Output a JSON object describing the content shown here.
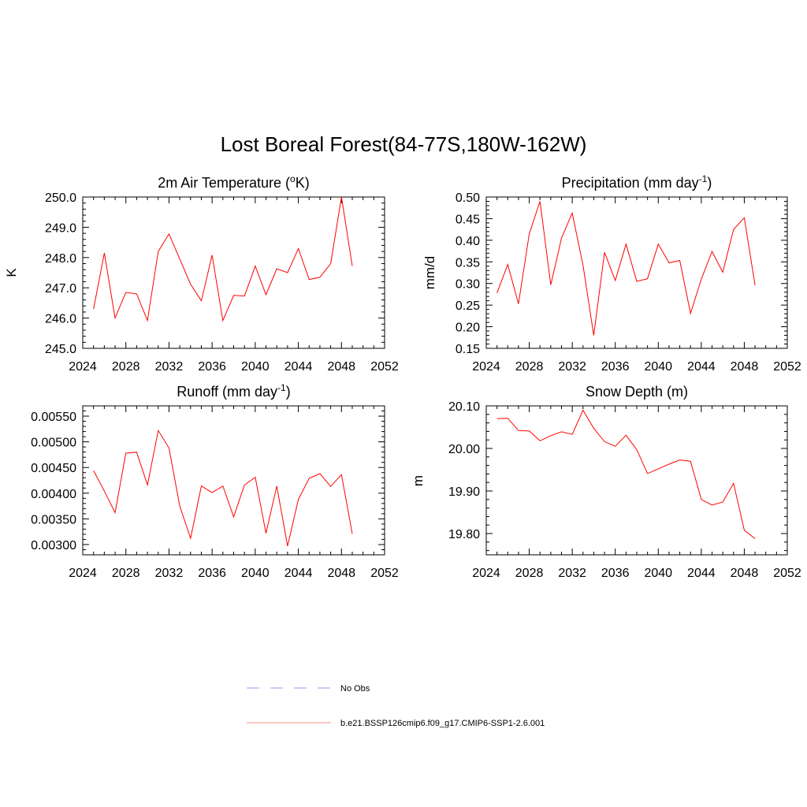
{
  "title": "Lost Boreal Forest(84-77S,180W-162W)",
  "colors": {
    "model": "#ff0000",
    "obs": "#9999ee"
  },
  "legend": [
    {
      "label": "No Obs",
      "style": "dashed"
    },
    {
      "label": "b.e21.BSSP126cmip6.f09_g17.CMIP6-SSP1-2.6.001",
      "style": "solid"
    }
  ],
  "chart_data": [
    {
      "type": "line",
      "title": "2m Air Temperature (°K)",
      "title_parts": {
        "main": "2m Air Temperature (",
        "sup": "o",
        "post": "K)"
      },
      "ylabel": "K",
      "xlim": [
        2024,
        2052
      ],
      "ylim": [
        245.0,
        250.0
      ],
      "xticks": [
        "2024",
        "2028",
        "2032",
        "2036",
        "2040",
        "2044",
        "2048",
        "2052"
      ],
      "yticks": [
        "245.0",
        "246.0",
        "247.0",
        "248.0",
        "249.0",
        "250.0"
      ],
      "x": [
        2025,
        2026,
        2027,
        2028,
        2029,
        2030,
        2031,
        2032,
        2033,
        2034,
        2035,
        2036,
        2037,
        2038,
        2039,
        2040,
        2041,
        2042,
        2043,
        2044,
        2045,
        2046,
        2047,
        2048,
        2049
      ],
      "values": [
        246.3,
        248.15,
        246.0,
        246.85,
        246.8,
        245.92,
        248.2,
        248.78,
        247.95,
        247.12,
        246.57,
        248.08,
        245.92,
        246.75,
        246.73,
        247.72,
        246.77,
        247.63,
        247.5,
        248.3,
        247.27,
        247.35,
        247.8,
        250.0,
        247.72
      ]
    },
    {
      "type": "line",
      "title": "Precipitation (mm day-1)",
      "title_parts": {
        "main": "Precipitation (mm day",
        "sup": "-1",
        "post": ")"
      },
      "ylabel": "mm/d",
      "xlim": [
        2024,
        2052
      ],
      "ylim": [
        0.15,
        0.5
      ],
      "xticks": [
        "2024",
        "2028",
        "2032",
        "2036",
        "2040",
        "2044",
        "2048",
        "2052"
      ],
      "yticks": [
        "0.15",
        "0.20",
        "0.25",
        "0.30",
        "0.35",
        "0.40",
        "0.45",
        "0.50"
      ],
      "x": [
        2025,
        2026,
        2027,
        2028,
        2029,
        2030,
        2031,
        2032,
        2033,
        2034,
        2035,
        2036,
        2037,
        2038,
        2039,
        2040,
        2041,
        2042,
        2043,
        2044,
        2045,
        2046,
        2047,
        2048,
        2049
      ],
      "values": [
        0.278,
        0.344,
        0.253,
        0.415,
        0.49,
        0.297,
        0.405,
        0.463,
        0.342,
        0.18,
        0.372,
        0.307,
        0.391,
        0.305,
        0.311,
        0.391,
        0.348,
        0.353,
        0.231,
        0.31,
        0.374,
        0.326,
        0.425,
        0.452,
        0.296
      ]
    },
    {
      "type": "line",
      "title": "Runoff (mm day-1)",
      "title_parts": {
        "main": "Runoff (mm day",
        "sup": "-1",
        "post": ")"
      },
      "ylabel": "",
      "xlim": [
        2024,
        2052
      ],
      "ylim": [
        0.0028,
        0.0057
      ],
      "xticks": [
        "2024",
        "2028",
        "2032",
        "2036",
        "2040",
        "2044",
        "2048",
        "2052"
      ],
      "yticks": [
        "0.00300",
        "0.00350",
        "0.00400",
        "0.00450",
        "0.00500",
        "0.00550"
      ],
      "x": [
        2025,
        2026,
        2027,
        2028,
        2029,
        2030,
        2031,
        2032,
        2033,
        2034,
        2035,
        2036,
        2037,
        2038,
        2039,
        2040,
        2041,
        2042,
        2043,
        2044,
        2045,
        2046,
        2047,
        2048,
        2049
      ],
      "values": [
        0.00444,
        0.00404,
        0.00362,
        0.00478,
        0.0048,
        0.00416,
        0.00522,
        0.00488,
        0.00375,
        0.00312,
        0.00414,
        0.00401,
        0.00414,
        0.00354,
        0.00416,
        0.00431,
        0.00322,
        0.00414,
        0.00297,
        0.00388,
        0.00429,
        0.00438,
        0.00413,
        0.00436,
        0.00321
      ]
    },
    {
      "type": "line",
      "title": "Snow Depth (m)",
      "title_parts": {
        "main": "Snow Depth (m)",
        "sup": "",
        "post": ""
      },
      "ylabel": "m",
      "xlim": [
        2024,
        2052
      ],
      "ylim": [
        19.75,
        20.1
      ],
      "xticks": [
        "2024",
        "2028",
        "2032",
        "2036",
        "2040",
        "2044",
        "2048",
        "2052"
      ],
      "yticks": [
        "19.80",
        "19.90",
        "20.00",
        "20.10"
      ],
      "x": [
        2025,
        2026,
        2027,
        2028,
        2029,
        2030,
        2031,
        2032,
        2033,
        2034,
        2035,
        2036,
        2037,
        2038,
        2039,
        2040,
        2041,
        2042,
        2043,
        2044,
        2045,
        2046,
        2047,
        2048,
        2049
      ],
      "values": [
        20.07,
        20.071,
        20.042,
        20.041,
        20.018,
        20.03,
        20.039,
        20.033,
        20.09,
        20.047,
        20.016,
        20.005,
        20.031,
        19.997,
        19.941,
        19.952,
        19.963,
        19.973,
        19.97,
        19.88,
        19.867,
        19.874,
        19.918,
        19.808,
        19.788
      ]
    }
  ]
}
